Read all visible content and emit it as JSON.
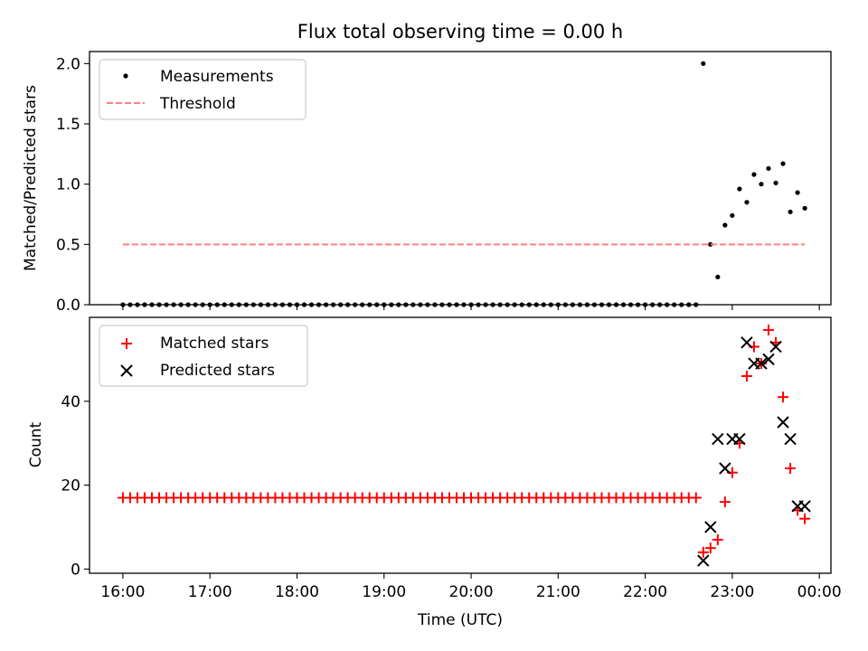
{
  "chart_data": [
    {
      "type": "scatter",
      "title": "Flux total observing time = 0.00 h",
      "ylabel": "Matched/Predicted stars",
      "xlabel": "",
      "xlim": [
        "15:37",
        "00:08"
      ],
      "ylim": [
        0,
        2.1
      ],
      "x_ticks": [
        "16:00",
        "17:00",
        "18:00",
        "19:00",
        "20:00",
        "21:00",
        "22:00",
        "23:00",
        "00:00"
      ],
      "x_tick_labels_visible": false,
      "y_ticks": [
        0.0,
        0.5,
        1.0,
        1.5,
        2.0
      ],
      "y_tick_labels": [
        "0.0",
        "0.5",
        "1.0",
        "1.5",
        "2.0"
      ],
      "grid": false,
      "legend_position": "upper-left",
      "series": [
        {
          "name": "Measurements",
          "marker": "dot",
          "color": "#000000",
          "points": [
            [
              "16:00",
              0
            ],
            [
              "16:05",
              0
            ],
            [
              "16:10",
              0
            ],
            [
              "16:15",
              0
            ],
            [
              "16:20",
              0
            ],
            [
              "16:25",
              0
            ],
            [
              "16:30",
              0
            ],
            [
              "16:35",
              0
            ],
            [
              "16:40",
              0
            ],
            [
              "16:45",
              0
            ],
            [
              "16:50",
              0
            ],
            [
              "16:55",
              0
            ],
            [
              "17:00",
              0
            ],
            [
              "17:05",
              0
            ],
            [
              "17:10",
              0
            ],
            [
              "17:15",
              0
            ],
            [
              "17:20",
              0
            ],
            [
              "17:25",
              0
            ],
            [
              "17:30",
              0
            ],
            [
              "17:35",
              0
            ],
            [
              "17:40",
              0
            ],
            [
              "17:45",
              0
            ],
            [
              "17:50",
              0
            ],
            [
              "17:55",
              0
            ],
            [
              "18:00",
              0
            ],
            [
              "18:05",
              0
            ],
            [
              "18:10",
              0
            ],
            [
              "18:15",
              0
            ],
            [
              "18:20",
              0
            ],
            [
              "18:25",
              0
            ],
            [
              "18:30",
              0
            ],
            [
              "18:35",
              0
            ],
            [
              "18:40",
              0
            ],
            [
              "18:45",
              0
            ],
            [
              "18:50",
              0
            ],
            [
              "18:55",
              0
            ],
            [
              "19:00",
              0
            ],
            [
              "19:05",
              0
            ],
            [
              "19:10",
              0
            ],
            [
              "19:15",
              0
            ],
            [
              "19:20",
              0
            ],
            [
              "19:25",
              0
            ],
            [
              "19:30",
              0
            ],
            [
              "19:35",
              0
            ],
            [
              "19:40",
              0
            ],
            [
              "19:45",
              0
            ],
            [
              "19:50",
              0
            ],
            [
              "19:55",
              0
            ],
            [
              "20:00",
              0
            ],
            [
              "20:05",
              0
            ],
            [
              "20:10",
              0
            ],
            [
              "20:15",
              0
            ],
            [
              "20:20",
              0
            ],
            [
              "20:25",
              0
            ],
            [
              "20:30",
              0
            ],
            [
              "20:35",
              0
            ],
            [
              "20:40",
              0
            ],
            [
              "20:45",
              0
            ],
            [
              "20:50",
              0
            ],
            [
              "20:55",
              0
            ],
            [
              "21:00",
              0
            ],
            [
              "21:05",
              0
            ],
            [
              "21:10",
              0
            ],
            [
              "21:15",
              0
            ],
            [
              "21:20",
              0
            ],
            [
              "21:25",
              0
            ],
            [
              "21:30",
              0
            ],
            [
              "21:35",
              0
            ],
            [
              "21:40",
              0
            ],
            [
              "21:45",
              0
            ],
            [
              "21:50",
              0
            ],
            [
              "21:55",
              0
            ],
            [
              "22:00",
              0
            ],
            [
              "22:05",
              0
            ],
            [
              "22:10",
              0
            ],
            [
              "22:15",
              0
            ],
            [
              "22:20",
              0
            ],
            [
              "22:25",
              0
            ],
            [
              "22:30",
              0
            ],
            [
              "22:35",
              0
            ],
            [
              "22:40",
              2.0
            ],
            [
              "22:45",
              0.5
            ],
            [
              "22:50",
              0.23
            ],
            [
              "22:55",
              0.66
            ],
            [
              "23:00",
              0.74
            ],
            [
              "23:05",
              0.96
            ],
            [
              "23:10",
              0.85
            ],
            [
              "23:15",
              1.08
            ],
            [
              "23:20",
              1.0
            ],
            [
              "23:25",
              1.13
            ],
            [
              "23:30",
              1.01
            ],
            [
              "23:35",
              1.17
            ],
            [
              "23:40",
              0.77
            ],
            [
              "23:45",
              0.93
            ],
            [
              "23:50",
              0.8
            ]
          ]
        },
        {
          "name": "Threshold",
          "style": "dashed",
          "color": "#ff7f7f",
          "points": [
            [
              "16:00",
              0.5
            ],
            [
              "23:50",
              0.5
            ]
          ]
        }
      ]
    },
    {
      "type": "scatter",
      "title": "",
      "xlabel": "Time (UTC)",
      "ylabel": "Count",
      "xlim": [
        "15:37",
        "00:08"
      ],
      "ylim": [
        -1,
        60
      ],
      "x_ticks": [
        "16:00",
        "17:00",
        "18:00",
        "19:00",
        "20:00",
        "21:00",
        "22:00",
        "23:00",
        "00:00"
      ],
      "x_tick_labels": [
        "16:00",
        "17:00",
        "18:00",
        "19:00",
        "20:00",
        "21:00",
        "22:00",
        "23:00",
        "00:00"
      ],
      "y_ticks": [
        0,
        20,
        40
      ],
      "y_tick_labels": [
        "0",
        "20",
        "40"
      ],
      "grid": false,
      "legend_position": "upper-left",
      "series": [
        {
          "name": "Matched stars",
          "marker": "plus",
          "color": "#ff0000",
          "points": [
            [
              "16:00",
              17
            ],
            [
              "16:05",
              17
            ],
            [
              "16:10",
              17
            ],
            [
              "16:15",
              17
            ],
            [
              "16:20",
              17
            ],
            [
              "16:25",
              17
            ],
            [
              "16:30",
              17
            ],
            [
              "16:35",
              17
            ],
            [
              "16:40",
              17
            ],
            [
              "16:45",
              17
            ],
            [
              "16:50",
              17
            ],
            [
              "16:55",
              17
            ],
            [
              "17:00",
              17
            ],
            [
              "17:05",
              17
            ],
            [
              "17:10",
              17
            ],
            [
              "17:15",
              17
            ],
            [
              "17:20",
              17
            ],
            [
              "17:25",
              17
            ],
            [
              "17:30",
              17
            ],
            [
              "17:35",
              17
            ],
            [
              "17:40",
              17
            ],
            [
              "17:45",
              17
            ],
            [
              "17:50",
              17
            ],
            [
              "17:55",
              17
            ],
            [
              "18:00",
              17
            ],
            [
              "18:05",
              17
            ],
            [
              "18:10",
              17
            ],
            [
              "18:15",
              17
            ],
            [
              "18:20",
              17
            ],
            [
              "18:25",
              17
            ],
            [
              "18:30",
              17
            ],
            [
              "18:35",
              17
            ],
            [
              "18:40",
              17
            ],
            [
              "18:45",
              17
            ],
            [
              "18:50",
              17
            ],
            [
              "18:55",
              17
            ],
            [
              "19:00",
              17
            ],
            [
              "19:05",
              17
            ],
            [
              "19:10",
              17
            ],
            [
              "19:15",
              17
            ],
            [
              "19:20",
              17
            ],
            [
              "19:25",
              17
            ],
            [
              "19:30",
              17
            ],
            [
              "19:35",
              17
            ],
            [
              "19:40",
              17
            ],
            [
              "19:45",
              17
            ],
            [
              "19:50",
              17
            ],
            [
              "19:55",
              17
            ],
            [
              "20:00",
              17
            ],
            [
              "20:05",
              17
            ],
            [
              "20:10",
              17
            ],
            [
              "20:15",
              17
            ],
            [
              "20:20",
              17
            ],
            [
              "20:25",
              17
            ],
            [
              "20:30",
              17
            ],
            [
              "20:35",
              17
            ],
            [
              "20:40",
              17
            ],
            [
              "20:45",
              17
            ],
            [
              "20:50",
              17
            ],
            [
              "20:55",
              17
            ],
            [
              "21:00",
              17
            ],
            [
              "21:05",
              17
            ],
            [
              "21:10",
              17
            ],
            [
              "21:15",
              17
            ],
            [
              "21:20",
              17
            ],
            [
              "21:25",
              17
            ],
            [
              "21:30",
              17
            ],
            [
              "21:35",
              17
            ],
            [
              "21:40",
              17
            ],
            [
              "21:45",
              17
            ],
            [
              "21:50",
              17
            ],
            [
              "21:55",
              17
            ],
            [
              "22:00",
              17
            ],
            [
              "22:05",
              17
            ],
            [
              "22:10",
              17
            ],
            [
              "22:15",
              17
            ],
            [
              "22:20",
              17
            ],
            [
              "22:25",
              17
            ],
            [
              "22:30",
              17
            ],
            [
              "22:35",
              17
            ],
            [
              "22:40",
              4
            ],
            [
              "22:45",
              5
            ],
            [
              "22:50",
              7
            ],
            [
              "22:55",
              16
            ],
            [
              "23:00",
              23
            ],
            [
              "23:05",
              30
            ],
            [
              "23:10",
              46
            ],
            [
              "23:15",
              53
            ],
            [
              "23:20",
              49
            ],
            [
              "23:25",
              57
            ],
            [
              "23:30",
              54
            ],
            [
              "23:35",
              41
            ],
            [
              "23:40",
              24
            ],
            [
              "23:45",
              14
            ],
            [
              "23:50",
              12
            ]
          ]
        },
        {
          "name": "Predicted stars",
          "marker": "x",
          "color": "#000000",
          "points": [
            [
              "22:40",
              2
            ],
            [
              "22:45",
              10
            ],
            [
              "22:50",
              31
            ],
            [
              "22:55",
              24
            ],
            [
              "23:00",
              31
            ],
            [
              "23:05",
              31
            ],
            [
              "23:10",
              54
            ],
            [
              "23:15",
              49
            ],
            [
              "23:20",
              49
            ],
            [
              "23:25",
              50
            ],
            [
              "23:30",
              53
            ],
            [
              "23:35",
              35
            ],
            [
              "23:40",
              31
            ],
            [
              "23:45",
              15
            ],
            [
              "23:50",
              15
            ]
          ]
        }
      ]
    }
  ]
}
